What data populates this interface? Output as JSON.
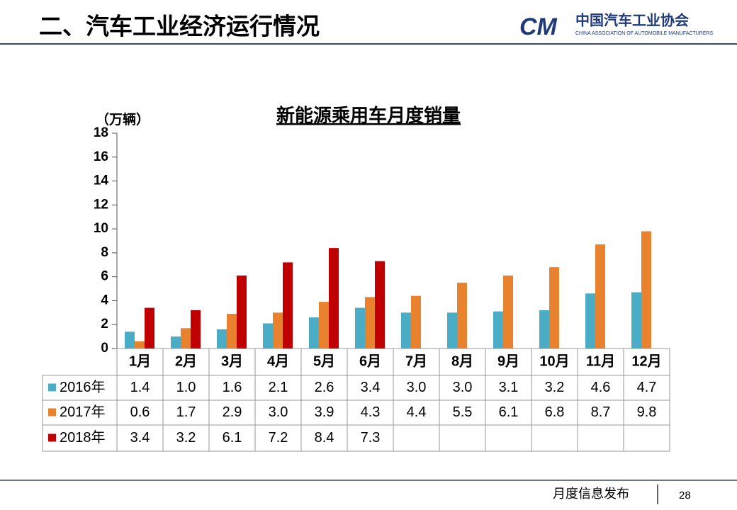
{
  "header": {
    "title": "二、汽车工业经济运行情况",
    "logo_mark": "CM",
    "org_name": "中国汽车工业协会",
    "org_name_en": "CHINA ASSOCIATION OF AUTOMOBILE MANUFACTURERS"
  },
  "footer": {
    "text": "月度信息发布",
    "page": "28"
  },
  "chart_data": {
    "type": "bar",
    "title": "新能源乘用车月度销量",
    "y_label": "（万辆）",
    "categories": [
      "1月",
      "2月",
      "3月",
      "4月",
      "5月",
      "6月",
      "7月",
      "8月",
      "9月",
      "10月",
      "11月",
      "12月"
    ],
    "series": [
      {
        "name": "2016年",
        "color": "#4bacc6",
        "values": [
          1.4,
          1.0,
          1.6,
          2.1,
          2.6,
          3.4,
          3.0,
          3.0,
          3.1,
          3.2,
          4.6,
          4.7
        ],
        "value_labels": [
          "1.4",
          "1.0",
          "1.6",
          "2.1",
          "2.6",
          "3.4",
          "3.0",
          "3.0",
          "3.1",
          "3.2",
          "4.6",
          "4.7"
        ]
      },
      {
        "name": "2017年",
        "color": "#e8822e",
        "values": [
          0.6,
          1.7,
          2.9,
          3.0,
          3.9,
          4.3,
          4.4,
          5.5,
          6.1,
          6.8,
          8.7,
          9.8
        ],
        "value_labels": [
          "0.6",
          "1.7",
          "2.9",
          "3.0",
          "3.9",
          "4.3",
          "4.4",
          "5.5",
          "6.1",
          "6.8",
          "8.7",
          "9.8"
        ]
      },
      {
        "name": "2018年",
        "color": "#c00000",
        "values": [
          3.4,
          3.2,
          6.1,
          7.2,
          8.4,
          7.3,
          null,
          null,
          null,
          null,
          null,
          null
        ],
        "value_labels": [
          "3.4",
          "3.2",
          "6.1",
          "7.2",
          "8.4",
          "7.3",
          null,
          null,
          null,
          null,
          null,
          null
        ]
      }
    ],
    "ylim": [
      0,
      18
    ],
    "yticks": [
      0,
      2,
      4,
      6,
      8,
      10,
      12,
      14,
      16,
      18
    ],
    "grid": false
  }
}
